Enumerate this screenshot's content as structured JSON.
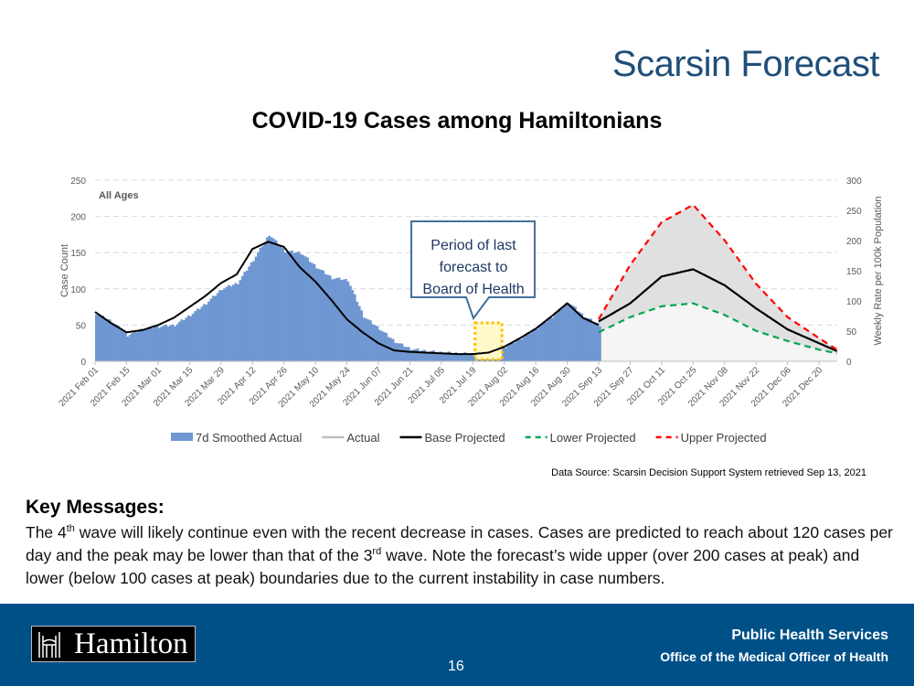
{
  "slide": {
    "title": "Scarsin Forecast",
    "page_number": "16"
  },
  "chart_data": {
    "type": "area",
    "title": "COVID-19 Cases among Hamiltonians",
    "subtitle": "All Ages",
    "ylabel": "Case Count",
    "y2label": "Weekly Rate per 100k Population",
    "ylim": [
      0,
      250
    ],
    "y2lim": [
      0,
      300
    ],
    "yticks": [
      "0",
      "50",
      "100",
      "150",
      "200",
      "250"
    ],
    "y2ticks": [
      "0",
      "50",
      "100",
      "150",
      "200",
      "250",
      "300"
    ],
    "xticks": [
      "2021 Feb 01",
      "2021 Feb 15",
      "2021 Mar 01",
      "2021 Mar 15",
      "2021 Mar 29",
      "2021 Apr 12",
      "2021 Apr 26",
      "2021 May 10",
      "2021 May 24",
      "2021 Jun 07",
      "2021 Jun 21",
      "2021 Jul 05",
      "2021 Jul 19",
      "2021 Aug 02",
      "2021 Aug 16",
      "2021 Aug 30",
      "2021 Sep 13",
      "2021 Sep 27",
      "2021 Oct 11",
      "2021 Oct 25",
      "2021 Nov 08",
      "2021 Nov 22",
      "2021 Dec 06",
      "2021 Dec 20"
    ],
    "x_days_note": "days since 2021 Feb 01",
    "actual_days": [
      0,
      7,
      14,
      21,
      28,
      35,
      42,
      49,
      56,
      63,
      70,
      77,
      84,
      91,
      98,
      105,
      112,
      119,
      126,
      133,
      140,
      147,
      154,
      161,
      168,
      175,
      182,
      189,
      196,
      203,
      210,
      217,
      224
    ],
    "actual_7d": [
      66,
      55,
      36,
      45,
      48,
      50,
      64,
      80,
      100,
      108,
      140,
      175,
      152,
      150,
      130,
      115,
      112,
      62,
      45,
      27,
      17,
      14,
      12,
      11,
      10,
      11,
      20,
      32,
      46,
      62,
      82,
      62,
      50
    ],
    "base_actual": [
      68,
      53,
      40,
      43,
      50,
      60,
      75,
      90,
      108,
      120,
      155,
      165,
      158,
      130,
      110,
      85,
      58,
      40,
      25,
      15,
      13,
      12,
      11,
      10,
      10,
      12,
      20,
      32,
      45,
      62,
      80,
      60,
      50
    ],
    "proj_days": [
      224,
      238,
      252,
      266,
      280,
      294,
      308,
      322,
      330
    ],
    "series": [
      {
        "name": "Base Projected",
        "values": [
          55,
          80,
          117,
          127,
          105,
          73,
          44,
          25,
          14
        ],
        "color": "#000000"
      },
      {
        "name": "Lower Projected",
        "values": [
          40,
          61,
          76,
          80,
          64,
          42,
          28,
          16,
          11
        ],
        "color": "#00a651"
      },
      {
        "name": "Upper Projected",
        "values": [
          58,
          133,
          192,
          216,
          167,
          107,
          61,
          32,
          16
        ],
        "color": "#ff0000"
      }
    ],
    "legend": [
      "7d Smoothed Actual",
      "Actual",
      "Base Projected",
      "Lower Projected",
      "Upper Projected"
    ],
    "legend_position": "bottom",
    "grid": true,
    "annotation": "Period of last forecast to Board of Health",
    "highlight_days": [
      169,
      181
    ],
    "colors": {
      "bars": "#6f97d2",
      "band": "#e0e0e0",
      "lower_band": "#f5f5f5",
      "highlight": "#fff9c9",
      "highlight_border": "#ffc000",
      "callout_border": "#41719c"
    }
  },
  "source": "Data Source: Scarsin Decision Support System retrieved Sep 13, 2021",
  "key_messages": {
    "heading": "Key Messages:",
    "p1": "The 4",
    "sup1": "th",
    "p2": " wave will likely continue even with the recent decrease in cases. Cases are predicted to reach about 120 cases per day and the peak may be lower than that of the 3",
    "sup2": "rd",
    "p3": " wave. Note the forecast’s wide upper (over 200 cases at peak) and lower (below 100 cases at peak) boundaries due to the current instability in case numbers."
  },
  "footer": {
    "logo": "Hamilton",
    "dept": "Public Health Services",
    "office": "Office of the Medical Officer of Health"
  }
}
